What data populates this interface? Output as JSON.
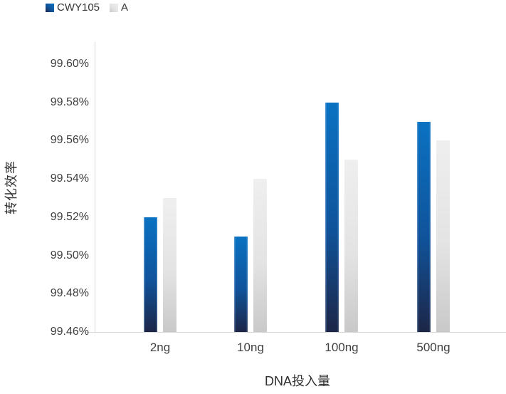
{
  "chart_data": {
    "type": "bar",
    "title": "",
    "categories": [
      "2ng",
      "10ng",
      "100ng",
      "500ng"
    ],
    "series": [
      {
        "name": "CWY105",
        "values": [
          99.52,
          99.51,
          99.58,
          99.57
        ],
        "color_top": "#0a72c2",
        "color_mid": "#10539b",
        "color_bottom": "#1d2647"
      },
      {
        "name": "A",
        "values": [
          99.53,
          99.54,
          99.55,
          99.56
        ],
        "color_top": "#efefef",
        "color_mid": "#e3e3e3",
        "color_bottom": "#c9c9c9"
      }
    ],
    "xlabel": "DNA投入量",
    "ylabel": "转化效率",
    "ylim": [
      99.46,
      99.6
    ],
    "ytick_step": 0.02,
    "ytick_labels": [
      "99.60%",
      "99.58%",
      "99.56%",
      "99.54%",
      "99.52%",
      "99.50%",
      "99.48%",
      "99.46%"
    ],
    "grid": false,
    "legend_position": "top-left"
  },
  "colors": {
    "axis_line": "#d9d9d9",
    "text": "#3f3f3f"
  }
}
